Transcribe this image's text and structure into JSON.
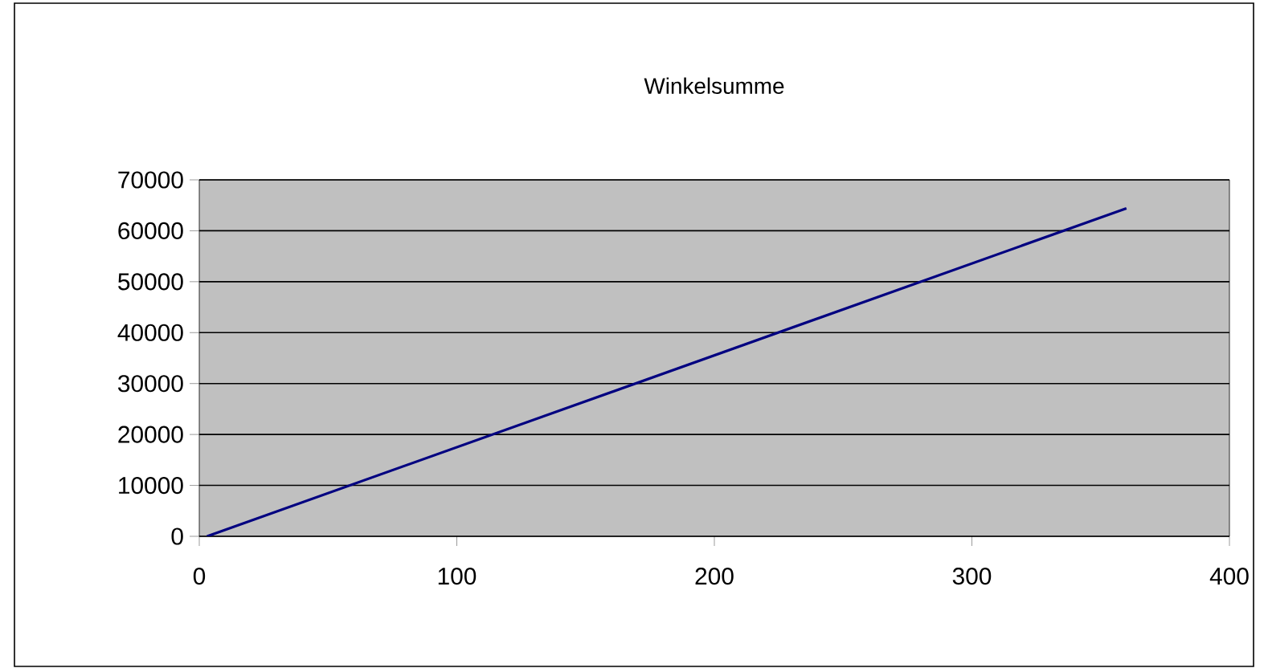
{
  "chart_data": {
    "type": "line",
    "title": "Winkelsumme",
    "x": [
      3,
      360
    ],
    "series": [
      {
        "color": "#000080",
        "values": [
          0,
          64400
        ]
      }
    ],
    "xlim": [
      0,
      400
    ],
    "xticks": [
      0,
      100,
      200,
      300,
      400
    ],
    "ylim": [
      0,
      70000
    ],
    "yticks": [
      0,
      10000,
      20000,
      30000,
      40000,
      50000,
      60000,
      70000
    ],
    "grid": "y",
    "legend": false,
    "marker": "none",
    "line_style": "solid"
  }
}
